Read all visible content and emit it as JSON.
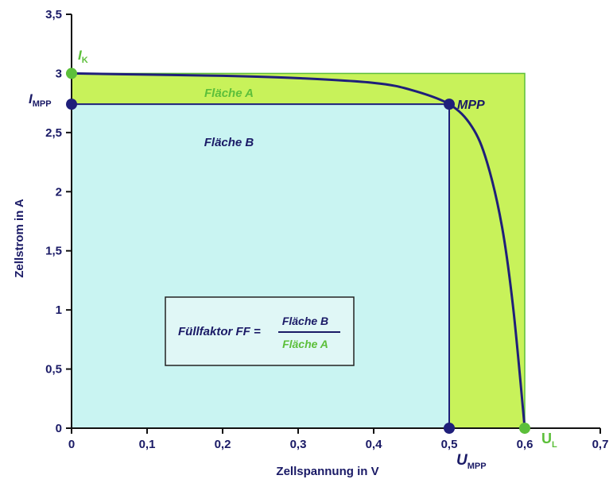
{
  "chart_data": {
    "type": "line",
    "title": "",
    "xlabel": "Zellspannung in V",
    "ylabel": "Zellstrom in A",
    "xlim": [
      0,
      0.7
    ],
    "ylim": [
      0,
      3.5
    ],
    "x_ticks": [
      0,
      0.1,
      0.2,
      0.3,
      0.4,
      0.5,
      0.6,
      0.7
    ],
    "x_tick_labels": [
      "0",
      "0,1",
      "0,2",
      "0,3",
      "0,4",
      "0,5",
      "0,6",
      "0,7"
    ],
    "y_ticks": [
      0,
      0.5,
      1,
      1.5,
      2,
      2.5,
      3,
      3.5
    ],
    "y_tick_labels": [
      "0",
      "0,5",
      "1",
      "1,5",
      "2",
      "2,5",
      "3",
      "3,5"
    ],
    "grid": false,
    "colors": {
      "curve": "#1f1f7a",
      "area_a": "#c8f25a",
      "area_b": "#c9f4f2",
      "green": "#5cbf3a",
      "navy": "#1a1a66"
    },
    "series": [
      {
        "x": [
          0,
          0.1,
          0.2,
          0.3,
          0.4,
          0.45,
          0.5,
          0.53,
          0.55,
          0.57,
          0.585,
          0.6
        ],
        "y": [
          3.0,
          2.99,
          2.98,
          2.96,
          2.92,
          2.86,
          2.74,
          2.55,
          2.25,
          1.7,
          1.0,
          0.0
        ]
      }
    ],
    "points": {
      "ik": {
        "x": 0,
        "y": 3.0
      },
      "impp": {
        "x": 0,
        "y": 2.74
      },
      "mpp": {
        "x": 0.5,
        "y": 2.74
      },
      "umpp": {
        "x": 0.5,
        "y": 0
      },
      "ul": {
        "x": 0.6,
        "y": 0
      }
    },
    "annotations": {
      "ik": {
        "main": "I",
        "sub": "K"
      },
      "impp": {
        "main": "I",
        "sub": "MPP"
      },
      "mpp": "MPP",
      "umpp": {
        "main": "U",
        "sub": "MPP"
      },
      "ul": {
        "main": "U",
        "sub": "L"
      },
      "flaeche_a": "Fläche A",
      "flaeche_b": "Fläche B"
    },
    "formula": {
      "lhs": "Füllfaktor FF =",
      "numerator": "Fläche B",
      "denominator": "Fläche A"
    }
  }
}
